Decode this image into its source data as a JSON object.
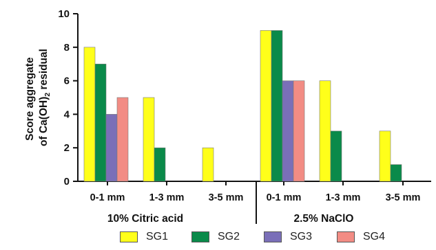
{
  "chart_data": {
    "type": "bar",
    "y_axis": {
      "label_line1": "Score aggregate",
      "label_line2_pre": "of Ca(OH)",
      "label_line2_sub": "2",
      "label_line2_post": " residual",
      "ylim": [
        0,
        10
      ],
      "ticks": [
        "0",
        "2",
        "4",
        "6",
        "8",
        "10"
      ]
    },
    "groups": [
      {
        "name": "10% Citric acid",
        "categories": [
          "0-1 mm",
          "1-3 mm",
          "3-5 mm"
        ]
      },
      {
        "name": "2.5% NaClO",
        "categories": [
          "0-1 mm",
          "1-3 mm",
          "3-5 mm"
        ]
      }
    ],
    "series": [
      {
        "name": "SG1",
        "color": "#ffff1a",
        "values": [
          8,
          5,
          2,
          9,
          6,
          3
        ]
      },
      {
        "name": "SG2",
        "color": "#0a8a4a",
        "values": [
          7,
          2,
          0,
          9,
          3,
          1
        ]
      },
      {
        "name": "SG3",
        "color": "#7a6fb8",
        "values": [
          4,
          0,
          0,
          6,
          0,
          0
        ]
      },
      {
        "name": "SG4",
        "color": "#f28c84",
        "values": [
          5,
          0,
          0,
          6,
          0,
          0
        ]
      }
    ],
    "grid": false,
    "legend_position": "bottom"
  }
}
